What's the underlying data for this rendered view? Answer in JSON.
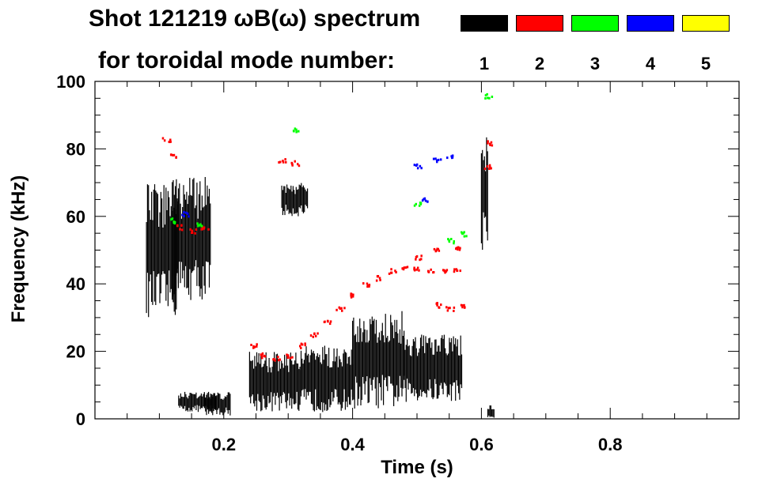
{
  "title_line1": "Shot 121219 ωB(ω) spectrum",
  "title_line2": "for toroidal mode number:",
  "legend": [
    {
      "label": "1",
      "color": "#000000"
    },
    {
      "label": "2",
      "color": "#ff0000"
    },
    {
      "label": "3",
      "color": "#00ff00"
    },
    {
      "label": "4",
      "color": "#0000ff"
    },
    {
      "label": "5",
      "color": "#ffff00"
    }
  ],
  "chart_data": {
    "type": "heatmap",
    "title": "Shot 121219 ωB(ω) spectrum for toroidal mode number",
    "xlabel": "Time (s)",
    "ylabel": "Frequency (kHz)",
    "xlim": [
      0.0,
      1.0
    ],
    "ylim": [
      0,
      100
    ],
    "x_ticks": [
      0.2,
      0.4,
      0.6,
      0.8
    ],
    "x_tick_labels": [
      "0.2",
      "0.4",
      "0.6",
      "0.8"
    ],
    "y_ticks": [
      0,
      20,
      40,
      60,
      80,
      100
    ],
    "y_tick_labels": [
      "0",
      "20",
      "40",
      "60",
      "80",
      "100"
    ],
    "series": [
      {
        "name": "n=1",
        "color": "#000000",
        "regions": [
          {
            "t": [
              0.08,
              0.13
            ],
            "f": [
              30,
              70
            ]
          },
          {
            "t": [
              0.12,
              0.18
            ],
            "f": [
              35,
              72
            ]
          },
          {
            "t": [
              0.13,
              0.19
            ],
            "f": [
              2,
              8
            ]
          },
          {
            "t": [
              0.17,
              0.21
            ],
            "f": [
              1,
              8
            ]
          },
          {
            "t": [
              0.24,
              0.32
            ],
            "f": [
              2,
              20
            ]
          },
          {
            "t": [
              0.29,
              0.33
            ],
            "f": [
              60,
              70
            ]
          },
          {
            "t": [
              0.32,
              0.4
            ],
            "f": [
              2,
              22
            ]
          },
          {
            "t": [
              0.4,
              0.48
            ],
            "f": [
              3,
              32
            ]
          },
          {
            "t": [
              0.48,
              0.57
            ],
            "f": [
              5,
              25
            ]
          },
          {
            "t": [
              0.6,
              0.61
            ],
            "f": [
              50,
              85
            ]
          },
          {
            "t": [
              0.61,
              0.62
            ],
            "f": [
              0,
              4
            ]
          }
        ]
      },
      {
        "name": "n=2",
        "color": "#ff0000",
        "points": [
          [
            0.245,
            22
          ],
          [
            0.26,
            19
          ],
          [
            0.28,
            18
          ],
          [
            0.3,
            19
          ],
          [
            0.32,
            22
          ],
          [
            0.34,
            25
          ],
          [
            0.36,
            29
          ],
          [
            0.38,
            33
          ],
          [
            0.4,
            37
          ],
          [
            0.42,
            40
          ],
          [
            0.44,
            42
          ],
          [
            0.46,
            44
          ],
          [
            0.48,
            45
          ],
          [
            0.5,
            45
          ],
          [
            0.52,
            44
          ],
          [
            0.54,
            44
          ],
          [
            0.56,
            44
          ],
          [
            0.5,
            48
          ],
          [
            0.53,
            50
          ],
          [
            0.56,
            51
          ],
          [
            0.53,
            34
          ],
          [
            0.55,
            33
          ],
          [
            0.57,
            34
          ],
          [
            0.29,
            77
          ],
          [
            0.31,
            76
          ],
          [
            0.11,
            83
          ],
          [
            0.12,
            78
          ],
          [
            0.13,
            57
          ],
          [
            0.15,
            56
          ],
          [
            0.17,
            57
          ],
          [
            0.61,
            82
          ],
          [
            0.61,
            75
          ]
        ]
      },
      {
        "name": "n=3",
        "color": "#00ff00",
        "points": [
          [
            0.12,
            59
          ],
          [
            0.16,
            58
          ],
          [
            0.5,
            64
          ],
          [
            0.55,
            53
          ],
          [
            0.57,
            55
          ],
          [
            0.31,
            86
          ],
          [
            0.61,
            96
          ]
        ]
      },
      {
        "name": "n=4",
        "color": "#0000ff",
        "points": [
          [
            0.14,
            61
          ],
          [
            0.5,
            75
          ],
          [
            0.51,
            65
          ],
          [
            0.53,
            77
          ],
          [
            0.55,
            78
          ]
        ]
      },
      {
        "name": "n=5",
        "color": "#ffff00",
        "points": []
      }
    ]
  }
}
